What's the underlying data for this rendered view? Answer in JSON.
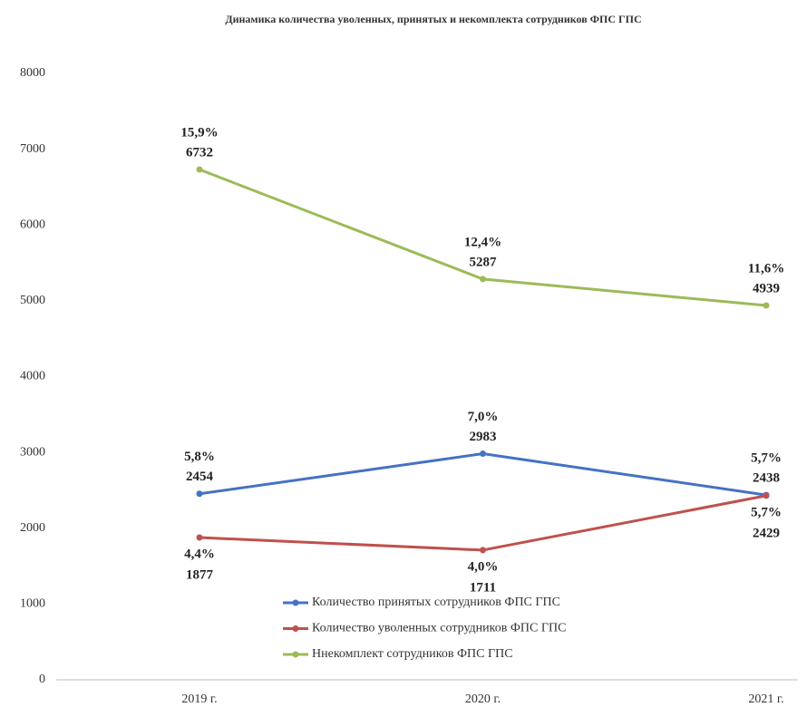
{
  "chart_data": {
    "type": "line",
    "title": "Динамика количества уволенных, принятых и некомплекта сотрудников ФПС ГПС",
    "categories": [
      "2019 г.",
      "2020 г.",
      "2021 г."
    ],
    "ylim": [
      0,
      8000
    ],
    "yticks": [
      0,
      1000,
      2000,
      3000,
      4000,
      5000,
      6000,
      7000,
      8000
    ],
    "grid": false,
    "series": [
      {
        "name": "Количество принятых сотрудников ФПС ГПС",
        "color": "#4472c4",
        "values": [
          2454,
          2983,
          2438
        ],
        "percent_labels": [
          "5,8%",
          "7,0%",
          "5,7%"
        ]
      },
      {
        "name": "Количество уволенных сотрудников ФПС ГПС",
        "color": "#c0504d",
        "values": [
          1877,
          1711,
          2429
        ],
        "percent_labels": [
          "4,4%",
          "4,0%",
          "5,7%"
        ]
      },
      {
        "name": "Ннекомплект сотрудников ФПС ГПС",
        "color": "#9bbb59",
        "values": [
          6732,
          5287,
          4939
        ],
        "percent_labels": [
          "15,9%",
          "12,4%",
          "11,6%"
        ]
      }
    ]
  }
}
